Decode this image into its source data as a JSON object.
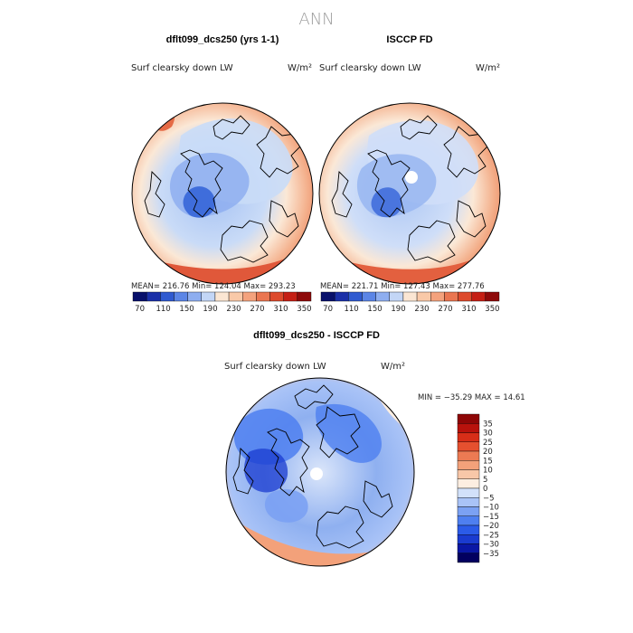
{
  "title": "ANN",
  "colors": {
    "scale_abs": [
      "#08106b",
      "#1a2fa8",
      "#2f5ad0",
      "#5b85e6",
      "#8eaef0",
      "#c3d6f6",
      "#fbe6d3",
      "#f9c9a8",
      "#f4a27d",
      "#ea7651",
      "#dd4a2c",
      "#c51f14",
      "#8e0a0a"
    ],
    "scale_diff": [
      "#020060",
      "#0a17a5",
      "#1a3bd0",
      "#2b5be8",
      "#4e7ff0",
      "#7ba1f3",
      "#a9c3f7",
      "#d2e1fa",
      "#fdeee1",
      "#f8c7a8",
      "#f3a17a",
      "#ec7a53",
      "#e5502f",
      "#d72e18",
      "#b8120c",
      "#8e0606"
    ],
    "land": "#000000"
  },
  "panels": [
    {
      "header": "dflt099_dcs250 (yrs 1-1)",
      "variable": "Surf clearsky down LW",
      "units": "W/m²",
      "stats": "MEAN= 216.76   Min= 124.04   Max= 293.23"
    },
    {
      "header": "ISCCP FD",
      "variable": "Surf clearsky down LW",
      "units": "W/m²",
      "stats": "MEAN= 221.71   Min= 127.43   Max= 277.76"
    },
    {
      "header": "dflt099_dcs250 - ISCCP FD",
      "variable": "Surf clearsky down LW",
      "units": "W/m²",
      "stats": "MIN = −35.29 MAX =  14.61"
    }
  ],
  "chart_data": [
    {
      "type": "heatmap",
      "projection": "north polar stereographic",
      "title": "dflt099_dcs250 (yrs 1-1)",
      "variable": "Surf clearsky down LW",
      "units": "W/m²",
      "mean": 216.76,
      "min": 124.04,
      "max": 293.23,
      "colorbar_levels": [
        70,
        90,
        110,
        130,
        150,
        170,
        190,
        210,
        230,
        250,
        270,
        290,
        310,
        330,
        350
      ],
      "colorbar_tick_labels": [
        "70",
        "110",
        "150",
        "190",
        "230",
        "270",
        "310",
        "350"
      ]
    },
    {
      "type": "heatmap",
      "projection": "north polar stereographic",
      "title": "ISCCP FD",
      "variable": "Surf clearsky down LW",
      "units": "W/m²",
      "mean": 221.71,
      "min": 127.43,
      "max": 277.76,
      "colorbar_levels": [
        70,
        90,
        110,
        130,
        150,
        170,
        190,
        210,
        230,
        250,
        270,
        290,
        310,
        330,
        350
      ],
      "colorbar_tick_labels": [
        "70",
        "110",
        "150",
        "190",
        "230",
        "270",
        "310",
        "350"
      ]
    },
    {
      "type": "heatmap",
      "projection": "north polar stereographic",
      "title": "dflt099_dcs250 - ISCCP FD",
      "variable": "Surf clearsky down LW",
      "units": "W/m²",
      "min": -35.29,
      "max": 14.61,
      "colorbar_levels": [
        -35,
        -30,
        -25,
        -20,
        -15,
        -10,
        -5,
        0,
        5,
        10,
        15,
        20,
        25,
        30,
        35
      ],
      "colorbar_tick_labels": [
        "35",
        "30",
        "25",
        "20",
        "15",
        "10",
        "5",
        "0",
        "−5",
        "−10",
        "−15",
        "−20",
        "−25",
        "−30",
        "−35"
      ]
    }
  ]
}
